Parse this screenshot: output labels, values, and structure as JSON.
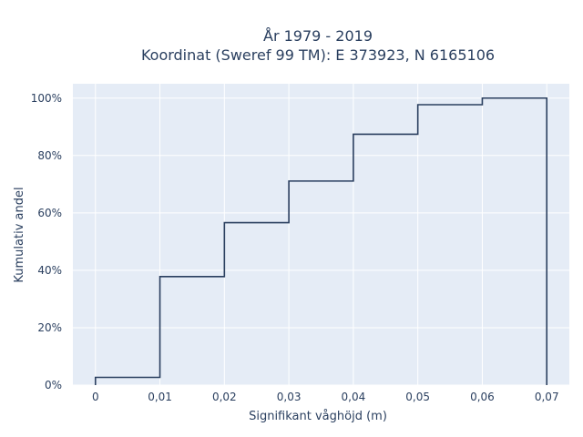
{
  "chart_data": {
    "type": "line",
    "line_shape": "step (cumulative distribution)",
    "title": "År 1979 - 2019",
    "subtitle": "Koordinat (Sweref 99 TM): E 373923, N 6165106",
    "xlabel": "Signifikant våghöjd (m)",
    "ylabel": "Kumulativ andel",
    "xlim": [
      -0.0035,
      0.0735
    ],
    "ylim": [
      0,
      1.05
    ],
    "x_ticks": [
      0,
      0.01,
      0.02,
      0.03,
      0.04,
      0.05,
      0.06,
      0.07
    ],
    "x_tick_labels": [
      "0",
      "0,01",
      "0,02",
      "0,03",
      "0,04",
      "0,05",
      "0,06",
      "0,07"
    ],
    "y_ticks": [
      0,
      0.2,
      0.4,
      0.6,
      0.8,
      1.0
    ],
    "y_tick_labels": [
      "0%",
      "20%",
      "40%",
      "60%",
      "80%",
      "100%"
    ],
    "grid": true,
    "colors": {
      "plot_bg": "#e5ecf6",
      "grid": "#ffffff",
      "line": "#2a3f5f",
      "text": "#2a3f5f"
    },
    "series": [
      {
        "x": [
          0,
          0.01,
          0.02,
          0.03,
          0.04,
          0.05,
          0.06,
          0.07
        ],
        "y": [
          0.027,
          0.378,
          0.566,
          0.711,
          0.874,
          0.977,
          1.0,
          1.0
        ],
        "end_drop_to": 0
      }
    ]
  }
}
